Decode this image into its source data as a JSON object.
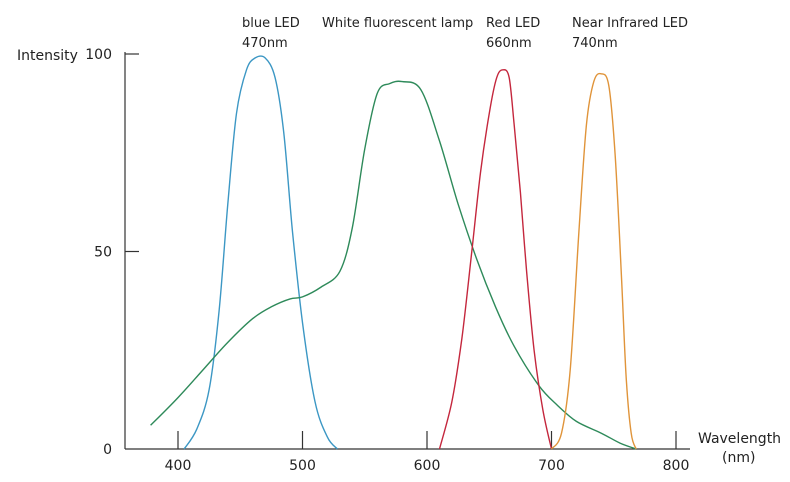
{
  "chart_data": {
    "type": "line",
    "title": "",
    "ylabel": "Intensity",
    "xlabel": [
      "Wavelength",
      "(nm)"
    ],
    "xlim": [
      380,
      800
    ],
    "ylim": [
      0,
      100
    ],
    "xticks": [
      400,
      500,
      600,
      700,
      800
    ],
    "yticks": [
      0,
      50,
      100
    ],
    "grid": false,
    "legend": "none",
    "series": [
      {
        "name": "blue LED",
        "label_lines": [
          "blue LED",
          "470nm"
        ],
        "color": "#3c97c4",
        "points": [
          [
            405,
            0
          ],
          [
            415,
            5
          ],
          [
            425,
            15
          ],
          [
            433,
            35
          ],
          [
            440,
            62
          ],
          [
            447,
            85
          ],
          [
            455,
            96
          ],
          [
            462,
            99
          ],
          [
            470,
            99
          ],
          [
            478,
            94
          ],
          [
            485,
            80
          ],
          [
            492,
            55
          ],
          [
            500,
            32
          ],
          [
            510,
            12
          ],
          [
            520,
            3
          ],
          [
            528,
            0
          ]
        ]
      },
      {
        "name": "White fluorescent lamp",
        "label_lines": [
          "White fluorescent lamp"
        ],
        "color": "#2e8a5a",
        "points": [
          [
            378,
            6
          ],
          [
            400,
            13
          ],
          [
            420,
            20
          ],
          [
            440,
            27
          ],
          [
            460,
            33
          ],
          [
            475,
            36
          ],
          [
            490,
            38
          ],
          [
            500,
            38.5
          ],
          [
            515,
            41
          ],
          [
            530,
            45
          ],
          [
            540,
            56
          ],
          [
            550,
            76
          ],
          [
            560,
            90
          ],
          [
            570,
            92.5
          ],
          [
            580,
            93
          ],
          [
            595,
            91
          ],
          [
            610,
            78
          ],
          [
            625,
            62
          ],
          [
            640,
            48
          ],
          [
            655,
            36
          ],
          [
            670,
            26
          ],
          [
            690,
            16
          ],
          [
            705,
            11
          ],
          [
            720,
            7
          ],
          [
            740,
            4
          ],
          [
            755,
            1.5
          ],
          [
            768,
            0
          ]
        ]
      },
      {
        "name": "Red LED",
        "label_lines": [
          "Red LED",
          "660nm"
        ],
        "color": "#c4273d",
        "points": [
          [
            610,
            0
          ],
          [
            620,
            12
          ],
          [
            628,
            28
          ],
          [
            636,
            50
          ],
          [
            643,
            70
          ],
          [
            650,
            85
          ],
          [
            656,
            94
          ],
          [
            661,
            96
          ],
          [
            666,
            94
          ],
          [
            670,
            82
          ],
          [
            675,
            65
          ],
          [
            680,
            45
          ],
          [
            686,
            25
          ],
          [
            693,
            10
          ],
          [
            700,
            0
          ]
        ]
      },
      {
        "name": "Near Infrared LED",
        "label_lines": [
          "Near Infrared LED",
          "740nm"
        ],
        "color": "#e0943a",
        "points": [
          [
            700,
            0
          ],
          [
            708,
            4
          ],
          [
            715,
            20
          ],
          [
            722,
            55
          ],
          [
            728,
            82
          ],
          [
            734,
            93
          ],
          [
            740,
            95
          ],
          [
            746,
            92
          ],
          [
            751,
            75
          ],
          [
            756,
            45
          ],
          [
            760,
            18
          ],
          [
            764,
            4
          ],
          [
            768,
            0
          ]
        ]
      }
    ]
  }
}
